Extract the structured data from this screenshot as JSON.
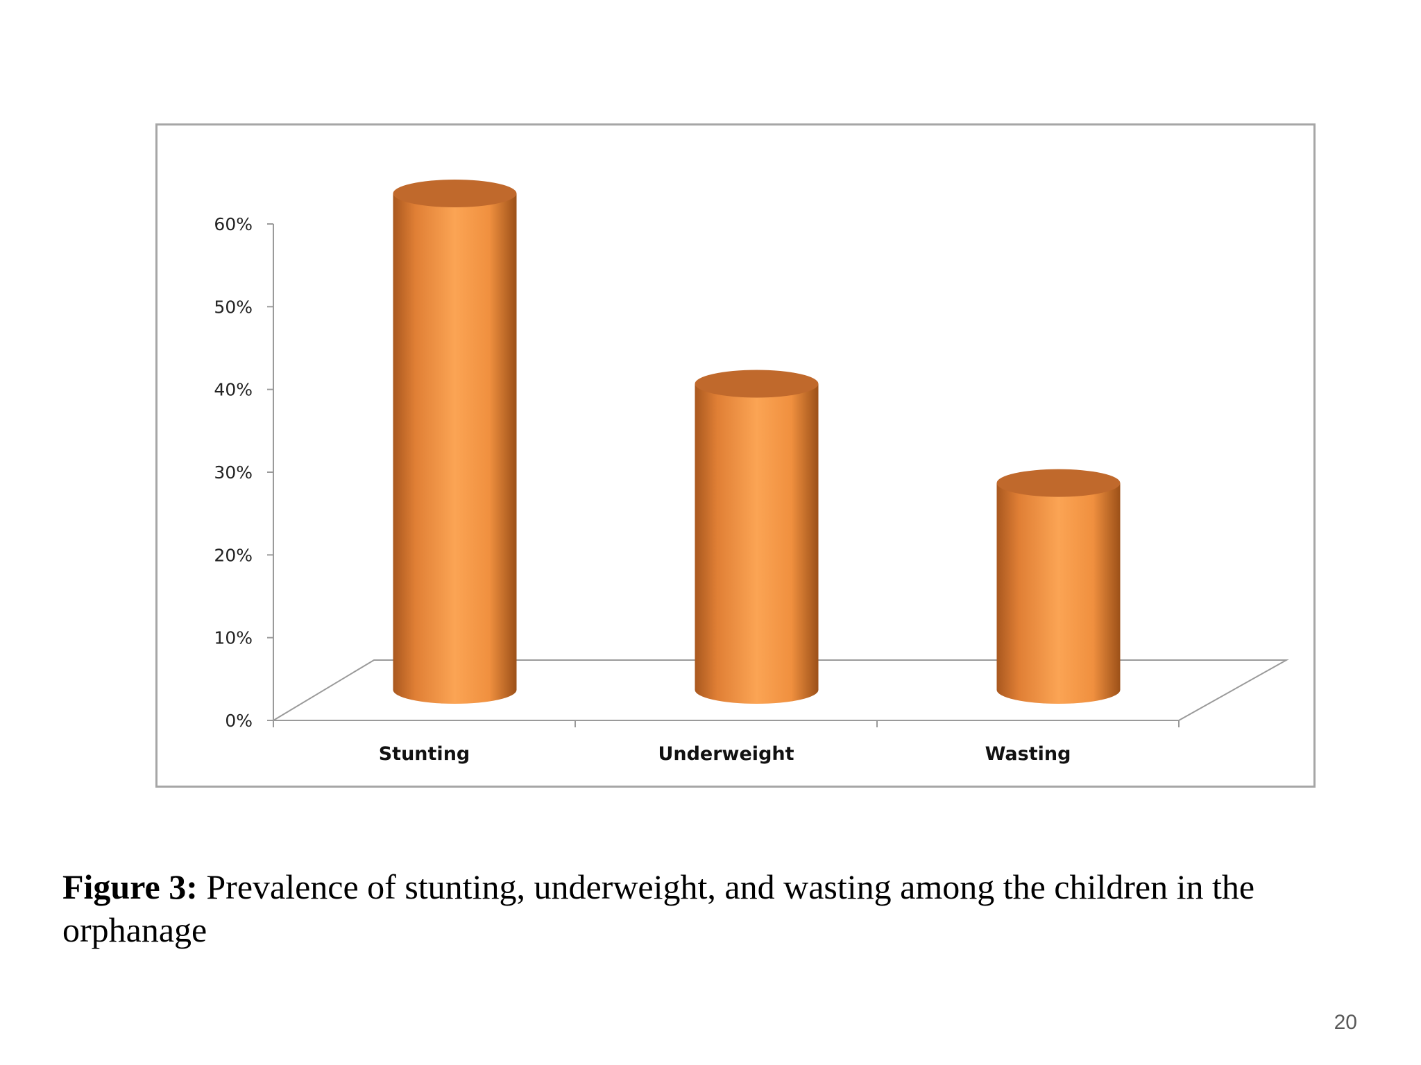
{
  "chart_data": {
    "type": "bar",
    "style": "3d-cylinder",
    "categories": [
      "Stunting",
      "Underweight",
      "Wasting"
    ],
    "series": [
      {
        "values": [
          60,
          37,
          25
        ]
      }
    ],
    "ylim": [
      0,
      60
    ],
    "yticks": [
      "0%",
      "10%",
      "20%",
      "30%",
      "40%",
      "50%",
      "60%"
    ],
    "title": "",
    "xlabel": "",
    "ylabel": "",
    "grid": false,
    "legend": "none",
    "colors": {
      "bar_main": "#f79646",
      "bar_dark": "#a9581f",
      "bar_top": "#c0692c"
    }
  },
  "caption": {
    "label": "Figure 3:",
    "text": " Prevalence of stunting, underweight, and wasting among the children in the orphanage"
  },
  "slide_number": "20"
}
